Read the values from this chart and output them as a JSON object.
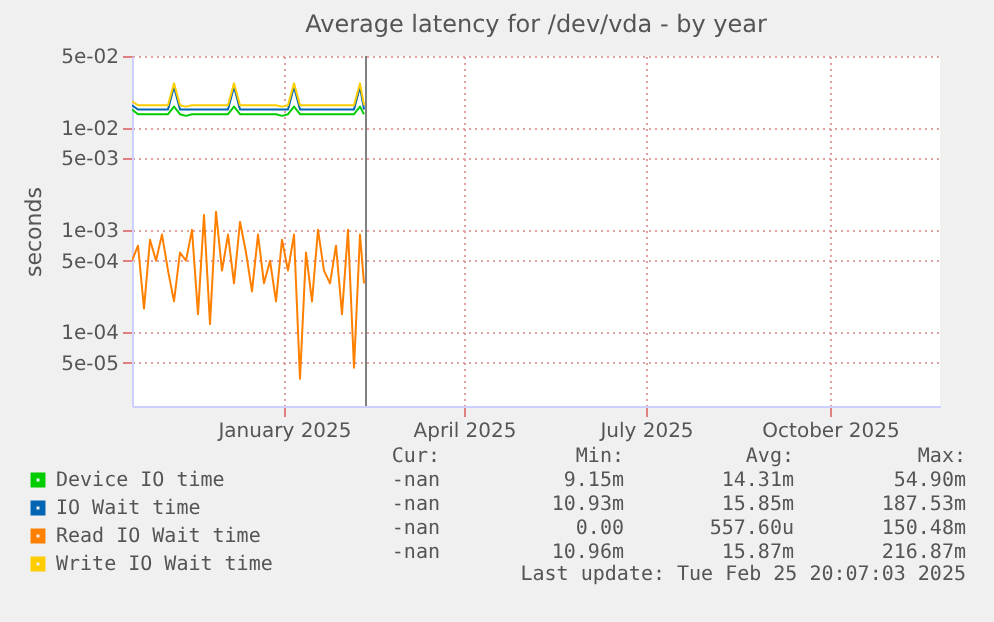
{
  "chart_data": {
    "type": "line",
    "title": "Average latency for /dev/vda - by year",
    "ylabel": "seconds",
    "log": "y",
    "grid": true,
    "legend": "bottom left",
    "marker": "none",
    "line_style": "solid",
    "xlim": [
      "2024-10-17",
      "2025-11-25"
    ],
    "xticks": [
      {
        "value": "2025-01-01",
        "label": "January 2025"
      },
      {
        "value": "2025-04-01",
        "label": "April 2025"
      },
      {
        "value": "2025-07-01",
        "label": "July 2025"
      },
      {
        "value": "2025-10-01",
        "label": "October 2025"
      }
    ],
    "ylim": [
      1.9e-05,
      0.05
    ],
    "yticks": [
      {
        "value": 5e-05,
        "label": "5e-05"
      },
      {
        "value": 0.0001,
        "label": "1e-04"
      },
      {
        "value": 0.0005,
        "label": "5e-04"
      },
      {
        "value": 0.001,
        "label": "1e-03"
      },
      {
        "value": 0.005,
        "label": "5e-03"
      },
      {
        "value": 0.01,
        "label": "1e-02"
      },
      {
        "value": 0.05,
        "label": "5e-02"
      }
    ],
    "x": [
      "2024-10-17",
      "2024-10-20",
      "2024-10-23",
      "2024-10-26",
      "2024-10-29",
      "2024-11-01",
      "2024-11-04",
      "2024-11-07",
      "2024-11-10",
      "2024-11-13",
      "2024-11-16",
      "2024-11-19",
      "2024-11-22",
      "2024-11-25",
      "2024-11-28",
      "2024-12-01",
      "2024-12-04",
      "2024-12-07",
      "2024-12-10",
      "2024-12-13",
      "2024-12-16",
      "2024-12-19",
      "2024-12-22",
      "2024-12-25",
      "2024-12-28",
      "2024-12-31",
      "2025-01-03",
      "2025-01-06",
      "2025-01-09",
      "2025-01-12",
      "2025-01-15",
      "2025-01-18",
      "2025-01-21",
      "2025-01-24",
      "2025-01-27",
      "2025-01-30",
      "2025-02-02",
      "2025-02-05",
      "2025-02-08",
      "2025-02-10"
    ],
    "series": [
      {
        "name": "Device IO time",
        "color": "#00cc00",
        "values": [
          0.015,
          0.0135,
          0.0135,
          0.0135,
          0.0135,
          0.0135,
          0.0135,
          0.016,
          0.0135,
          0.013,
          0.0135,
          0.0135,
          0.0135,
          0.0135,
          0.0135,
          0.0135,
          0.0135,
          0.016,
          0.0135,
          0.0135,
          0.0135,
          0.0135,
          0.0135,
          0.0135,
          0.0135,
          0.013,
          0.0135,
          0.016,
          0.0135,
          0.0135,
          0.0135,
          0.0135,
          0.0135,
          0.0135,
          0.0135,
          0.0135,
          0.0135,
          0.0135,
          0.016,
          0.0135
        ]
      },
      {
        "name": "IO Wait time",
        "color": "#0066b3",
        "values": [
          0.0165,
          0.015,
          0.015,
          0.015,
          0.015,
          0.015,
          0.015,
          0.025,
          0.015,
          0.015,
          0.015,
          0.015,
          0.015,
          0.015,
          0.015,
          0.015,
          0.015,
          0.025,
          0.015,
          0.015,
          0.015,
          0.015,
          0.015,
          0.015,
          0.015,
          0.015,
          0.015,
          0.025,
          0.015,
          0.015,
          0.015,
          0.015,
          0.015,
          0.015,
          0.015,
          0.015,
          0.015,
          0.015,
          0.025,
          0.015
        ]
      },
      {
        "name": "Read IO Wait time",
        "color": "#ff8000",
        "values": [
          0.0005,
          0.0007,
          0.00017,
          0.0008,
          0.0005,
          0.0009,
          0.0004,
          0.0002,
          0.0006,
          0.0005,
          0.001,
          0.00015,
          0.0014,
          0.00012,
          0.0015,
          0.0004,
          0.0009,
          0.0003,
          0.0012,
          0.0006,
          0.00025,
          0.0009,
          0.0003,
          0.0005,
          0.0002,
          0.0008,
          0.0004,
          0.0009,
          3.5e-05,
          0.0006,
          0.0002,
          0.001,
          0.0004,
          0.0003,
          0.0007,
          0.00015,
          0.001,
          4.5e-05,
          0.0009,
          0.0003
        ]
      },
      {
        "name": "Write IO Wait time",
        "color": "#ffcc00",
        "values": [
          0.018,
          0.0165,
          0.0165,
          0.0165,
          0.0165,
          0.0165,
          0.0165,
          0.027,
          0.0165,
          0.016,
          0.0165,
          0.0165,
          0.0165,
          0.0165,
          0.0165,
          0.0165,
          0.0165,
          0.027,
          0.0165,
          0.0165,
          0.0165,
          0.0165,
          0.0165,
          0.0165,
          0.0165,
          0.016,
          0.0165,
          0.027,
          0.0165,
          0.0165,
          0.0165,
          0.0165,
          0.0165,
          0.0165,
          0.0165,
          0.0165,
          0.0165,
          0.0165,
          0.027,
          0.0165
        ]
      }
    ],
    "ref_lines": [
      {
        "axis": "x",
        "value": "2025-02-11",
        "color": "#808080"
      }
    ],
    "annotations": [
      "Cur:",
      "Min:",
      "Avg:",
      "Max:",
      "-nan",
      "9.15m",
      "14.31m",
      "54.90m",
      "-nan",
      "10.93m",
      "15.85m",
      "187.53m",
      "-nan",
      "0.00",
      "557.60u",
      "150.48m",
      "-nan",
      "10.96m",
      "15.87m",
      "216.87m",
      "Last update: Tue Feb 25 20:07:03 2025"
    ]
  }
}
